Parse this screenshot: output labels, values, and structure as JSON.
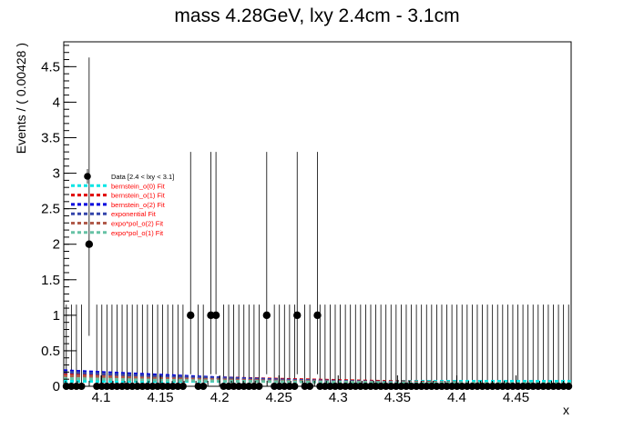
{
  "chart_data": {
    "type": "scatter",
    "title": "mass 4.28GeV, lxy 2.4cm - 3.1cm",
    "xlabel": "x",
    "ylabel": "Events / ( 0.00428 )",
    "xlim": [
      4.0685,
      4.4965
    ],
    "ylim": [
      0,
      4.85
    ],
    "x_ticks": [
      4.1,
      4.15,
      4.2,
      4.25,
      4.3,
      4.35,
      4.4,
      4.45
    ],
    "x_tick_labels": [
      "4.1",
      "4.15",
      "4.2",
      "4.25",
      "4.3",
      "4.35",
      "4.4",
      "4.45"
    ],
    "y_ticks": [
      0,
      0.5,
      1,
      1.5,
      2,
      2.5,
      3,
      3.5,
      4,
      4.5
    ],
    "y_tick_labels": [
      "0",
      "0.5",
      "1",
      "1.5",
      "2",
      "2.5",
      "3",
      "3.5",
      "4",
      "4.5"
    ],
    "bin_width": 0.00428,
    "data_series": {
      "name": "Data [2.4 < lxy < 3.1]",
      "color": "#000000",
      "points": [
        {
          "x": 4.0899,
          "y": 2,
          "err_low": 1.29,
          "err_high": 2.63
        },
        {
          "x": 4.1755,
          "y": 1,
          "err_low": 0.83,
          "err_high": 2.3
        },
        {
          "x": 4.1926,
          "y": 1,
          "err_low": 0.83,
          "err_high": 2.3
        },
        {
          "x": 4.1969,
          "y": 1,
          "err_low": 0.83,
          "err_high": 2.3
        },
        {
          "x": 4.2397,
          "y": 1,
          "err_low": 0.83,
          "err_high": 2.3
        },
        {
          "x": 4.2654,
          "y": 1,
          "err_low": 0.83,
          "err_high": 2.3
        },
        {
          "x": 4.2825,
          "y": 1,
          "err_low": 0.83,
          "err_high": 2.3
        }
      ],
      "zero_bin_err_high": 1.15
    },
    "fits": [
      {
        "name": "bernstein_o(0) Fit",
        "color": "#00e5e5",
        "text_color": "#ff0000",
        "x": [
          4.0685,
          4.4965
        ],
        "y": [
          0.07,
          0.07
        ]
      },
      {
        "name": "bernstein_o(1) Fit",
        "color": "#e00000",
        "text_color": "#ff0000",
        "x": [
          4.0685,
          4.15,
          4.25,
          4.35,
          4.4965
        ],
        "y": [
          0.17,
          0.14,
          0.1,
          0.065,
          0.02
        ]
      },
      {
        "name": "bernstein_o(2) Fit",
        "color": "#0000dd",
        "text_color": "#ff0000",
        "x": [
          4.0685,
          4.12,
          4.2,
          4.3,
          4.4,
          4.4965
        ],
        "y": [
          0.22,
          0.18,
          0.12,
          0.06,
          0.02,
          0.0
        ]
      },
      {
        "name": "exponential Fit",
        "color": "#3344aa",
        "text_color": "#ff0000",
        "x": [
          4.0685,
          4.15,
          4.25,
          4.35,
          4.4965
        ],
        "y": [
          0.2,
          0.14,
          0.09,
          0.055,
          0.025
        ]
      },
      {
        "name": "expo*pol_o(2) Fit",
        "color": "#b05a4a",
        "text_color": "#ff0000",
        "x": [
          4.0685,
          4.15,
          4.25,
          4.35,
          4.4965
        ],
        "y": [
          0.15,
          0.11,
          0.075,
          0.05,
          0.03
        ]
      },
      {
        "name": "expo*pol_o(1) Fit",
        "color": "#66c2a5",
        "text_color": "#ff0000",
        "x": [
          4.0685,
          4.15,
          4.25,
          4.35,
          4.4965
        ],
        "y": [
          0.11,
          0.085,
          0.065,
          0.05,
          0.04
        ]
      }
    ],
    "legend": "upper-left",
    "grid": false
  }
}
